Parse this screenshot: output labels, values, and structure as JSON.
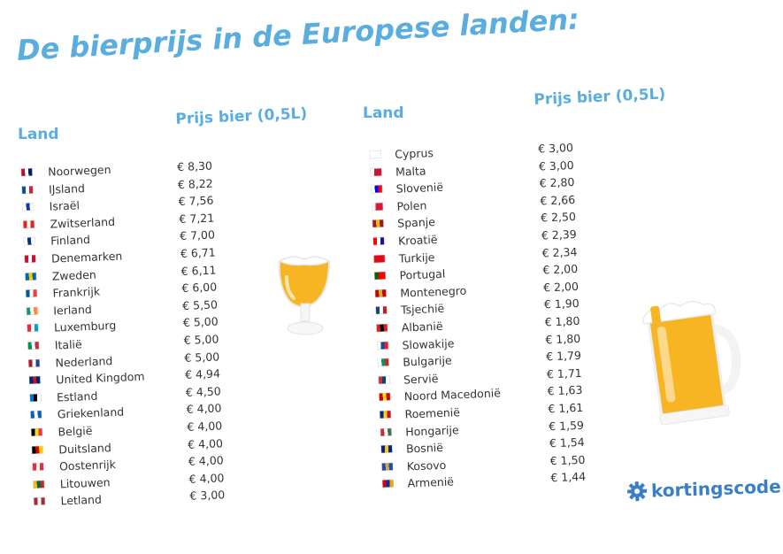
{
  "title": "De bierprijs in de Europese landen:",
  "left": {
    "col_land": "Land",
    "col_price": "Prijs bier (0,5L)",
    "rows": [
      {
        "country": "Noorwegen",
        "price": "€ 8,30",
        "flag": [
          "#ba0c2f",
          "#ffffff",
          "#00205b"
        ]
      },
      {
        "country": "IJsland",
        "price": "€ 8,22",
        "flag": [
          "#02529c",
          "#ffffff",
          "#dc1e35"
        ]
      },
      {
        "country": "Israël",
        "price": "€ 7,56",
        "flag": [
          "#ffffff",
          "#0038b8",
          "#ffffff"
        ]
      },
      {
        "country": "Zwitserland",
        "price": "€ 7,21",
        "flag": [
          "#d52b1e",
          "#ffffff",
          "#d52b1e"
        ]
      },
      {
        "country": "Finland",
        "price": "€ 7,00",
        "flag": [
          "#ffffff",
          "#003580",
          "#ffffff"
        ]
      },
      {
        "country": "Denemarken",
        "price": "€ 6,71",
        "flag": [
          "#c8102e",
          "#ffffff",
          "#c8102e"
        ]
      },
      {
        "country": "Zweden",
        "price": "€ 6,11",
        "flag": [
          "#006aa7",
          "#fecc00",
          "#006aa7"
        ]
      },
      {
        "country": "Frankrijk",
        "price": "€ 6,00",
        "flag": [
          "#0055a4",
          "#ffffff",
          "#ef4135"
        ]
      },
      {
        "country": "Ierland",
        "price": "€ 5,50",
        "flag": [
          "#169b62",
          "#ffffff",
          "#ff883e"
        ]
      },
      {
        "country": "Luxemburg",
        "price": "€ 5,00",
        "flag": [
          "#ed2939",
          "#ffffff",
          "#00a1de"
        ]
      },
      {
        "country": "Italië",
        "price": "€ 5,00",
        "flag": [
          "#009246",
          "#ffffff",
          "#ce2b37"
        ]
      },
      {
        "country": "Nederland",
        "price": "€ 5,00",
        "flag": [
          "#ae1c28",
          "#ffffff",
          "#21468b"
        ]
      },
      {
        "country": "United Kingdom",
        "price": "€ 4,94",
        "flag": [
          "#012169",
          "#c8102e",
          "#012169"
        ]
      },
      {
        "country": "Estland",
        "price": "€ 4,50",
        "flag": [
          "#0072ce",
          "#000000",
          "#ffffff"
        ]
      },
      {
        "country": "Griekenland",
        "price": "€ 4,00",
        "flag": [
          "#0d5eaf",
          "#ffffff",
          "#0d5eaf"
        ]
      },
      {
        "country": "België",
        "price": "€ 4,00",
        "flag": [
          "#000000",
          "#fdda24",
          "#ef3340"
        ]
      },
      {
        "country": "Duitsland",
        "price": "€ 4,00",
        "flag": [
          "#000000",
          "#dd0000",
          "#ffce00"
        ]
      },
      {
        "country": "Oostenrijk",
        "price": "€ 4,00",
        "flag": [
          "#ed2939",
          "#ffffff",
          "#ed2939"
        ]
      },
      {
        "country": "Litouwen",
        "price": "€ 4,00",
        "flag": [
          "#fdb913",
          "#006a44",
          "#c1272d"
        ]
      },
      {
        "country": "Letland",
        "price": "€ 3,00",
        "flag": [
          "#9e3039",
          "#ffffff",
          "#9e3039"
        ]
      }
    ]
  },
  "right": {
    "col_land": "Land",
    "col_price": "Prijs bier (0,5L)",
    "rows": [
      {
        "country": "Cyprus",
        "price": "€ 3,00",
        "flag": [
          "#ffffff",
          "#ffffff",
          "#ffffff"
        ]
      },
      {
        "country": "Malta",
        "price": "€ 3,00",
        "flag": [
          "#ffffff",
          "#cf142b",
          "#cf142b"
        ]
      },
      {
        "country": "Slovenië",
        "price": "€ 2,80",
        "flag": [
          "#ffffff",
          "#0000ff",
          "#ff0000"
        ]
      },
      {
        "country": "Polen",
        "price": "€ 2,66",
        "flag": [
          "#ffffff",
          "#dc143c",
          "#dc143c"
        ]
      },
      {
        "country": "Spanje",
        "price": "€ 2,50",
        "flag": [
          "#aa151b",
          "#f1bf00",
          "#aa151b"
        ]
      },
      {
        "country": "Kroatië",
        "price": "€ 2,39",
        "flag": [
          "#ff0000",
          "#ffffff",
          "#171796"
        ]
      },
      {
        "country": "Turkije",
        "price": "€ 2,34",
        "flag": [
          "#e30a17",
          "#e30a17",
          "#e30a17"
        ]
      },
      {
        "country": "Portugal",
        "price": "€ 2,00",
        "flag": [
          "#006600",
          "#ff0000",
          "#ff0000"
        ]
      },
      {
        "country": "Montenegro",
        "price": "€ 2,00",
        "flag": [
          "#c40308",
          "#d4af37",
          "#c40308"
        ]
      },
      {
        "country": "Tsjechië",
        "price": "€ 1,90",
        "flag": [
          "#11457e",
          "#ffffff",
          "#d7141a"
        ]
      },
      {
        "country": "Albanië",
        "price": "€ 1,80",
        "flag": [
          "#e41e20",
          "#000000",
          "#e41e20"
        ]
      },
      {
        "country": "Slowakije",
        "price": "€ 1,80",
        "flag": [
          "#ffffff",
          "#0b4ea2",
          "#ee1c25"
        ]
      },
      {
        "country": "Bulgarije",
        "price": "€ 1,79",
        "flag": [
          "#ffffff",
          "#00966e",
          "#d62612"
        ]
      },
      {
        "country": "Servië",
        "price": "€ 1,71",
        "flag": [
          "#c6363c",
          "#0c4076",
          "#ffffff"
        ]
      },
      {
        "country": "Noord Macedonië",
        "price": "€ 1,63",
        "flag": [
          "#d20000",
          "#ffe600",
          "#d20000"
        ]
      },
      {
        "country": "Roemenië",
        "price": "€ 1,61",
        "flag": [
          "#002b7f",
          "#fcd116",
          "#ce1126"
        ]
      },
      {
        "country": "Hongarije",
        "price": "€ 1,59",
        "flag": [
          "#ce2939",
          "#ffffff",
          "#477050"
        ]
      },
      {
        "country": "Bosnië",
        "price": "€ 1,54",
        "flag": [
          "#002395",
          "#fecb00",
          "#002395"
        ]
      },
      {
        "country": "Kosovo",
        "price": "€ 1,50",
        "flag": [
          "#244aa5",
          "#d0a650",
          "#244aa5"
        ]
      },
      {
        "country": "Armenië",
        "price": "€ 1,44",
        "flag": [
          "#d90012",
          "#0033a0",
          "#f2a800"
        ]
      }
    ]
  },
  "logo": {
    "text": "kortingscode.nl",
    "color": "#3a7fc6"
  },
  "colors": {
    "title": "#5aaedf",
    "beer": "#f7b423",
    "foam": "#ffffff"
  }
}
